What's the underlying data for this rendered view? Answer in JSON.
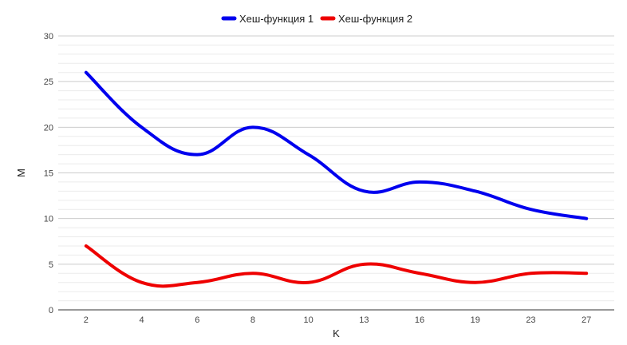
{
  "chart_data": {
    "type": "line",
    "title": "",
    "xlabel": "K",
    "ylabel": "M",
    "categories": [
      "2",
      "4",
      "6",
      "8",
      "10",
      "13",
      "16",
      "19",
      "23",
      "27"
    ],
    "ylim": [
      0,
      30
    ],
    "yticks": [
      0,
      5,
      10,
      15,
      20,
      25,
      30
    ],
    "grid": true,
    "legend_position": "top",
    "series": [
      {
        "name": "Хеш-функция 1",
        "color": "#0000ee",
        "values": [
          26,
          20,
          17,
          20,
          17,
          13,
          14,
          13,
          11,
          10
        ]
      },
      {
        "name": "Хеш-функция 2",
        "color": "#ee0000",
        "values": [
          7,
          3,
          3,
          4,
          3,
          5,
          4,
          3,
          4,
          4
        ]
      }
    ]
  }
}
